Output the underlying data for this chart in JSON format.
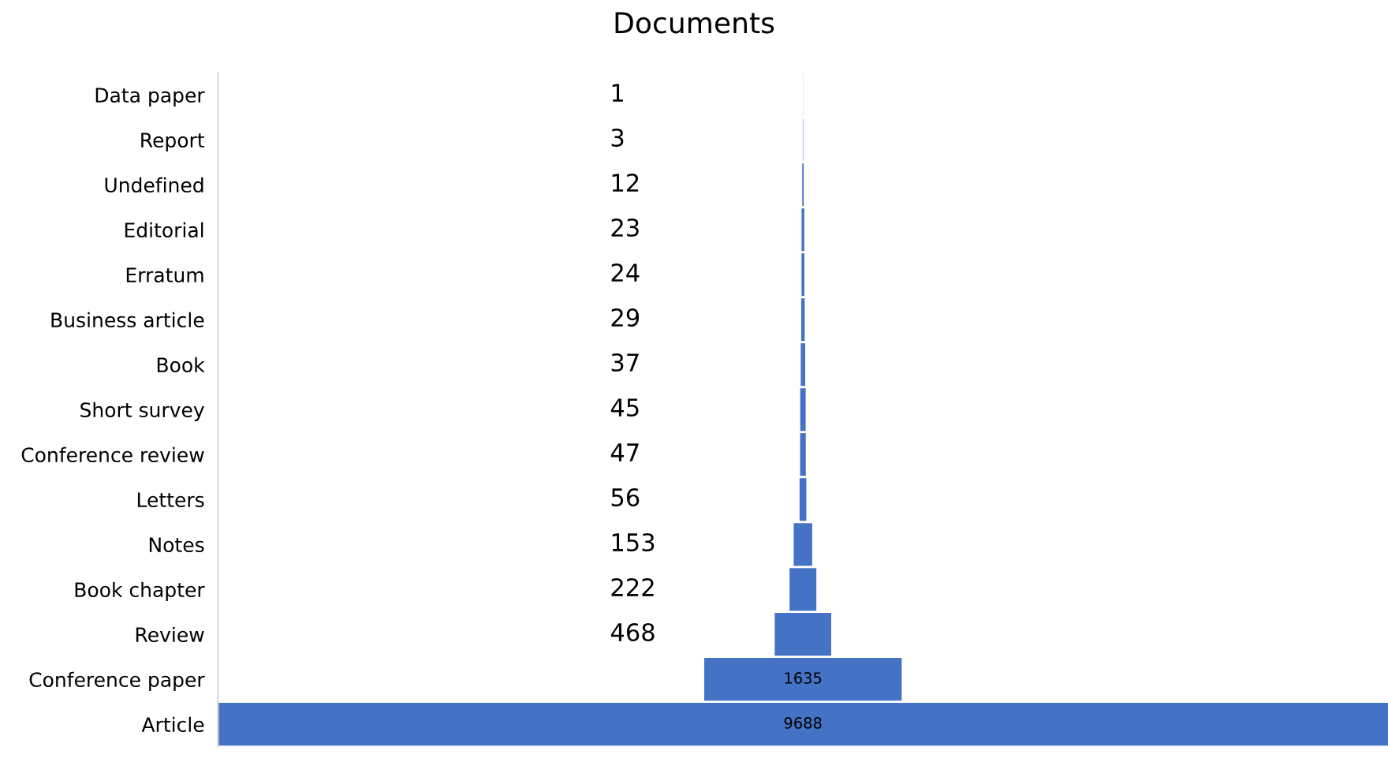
{
  "chart_data": {
    "type": "other",
    "title": "Documents",
    "categories": [
      "Data paper",
      "Report",
      "Undefined",
      "Editorial",
      "Erratum",
      "Business article",
      "Book",
      "Short survey",
      "Conference review",
      "Letters",
      "Notes",
      "Book chapter",
      "Review",
      "Conference paper",
      "Article"
    ],
    "values": [
      1,
      3,
      12,
      23,
      24,
      29,
      37,
      45,
      47,
      56,
      153,
      222,
      468,
      1635,
      9688
    ],
    "color": "#4472c4",
    "data_labels": true
  }
}
